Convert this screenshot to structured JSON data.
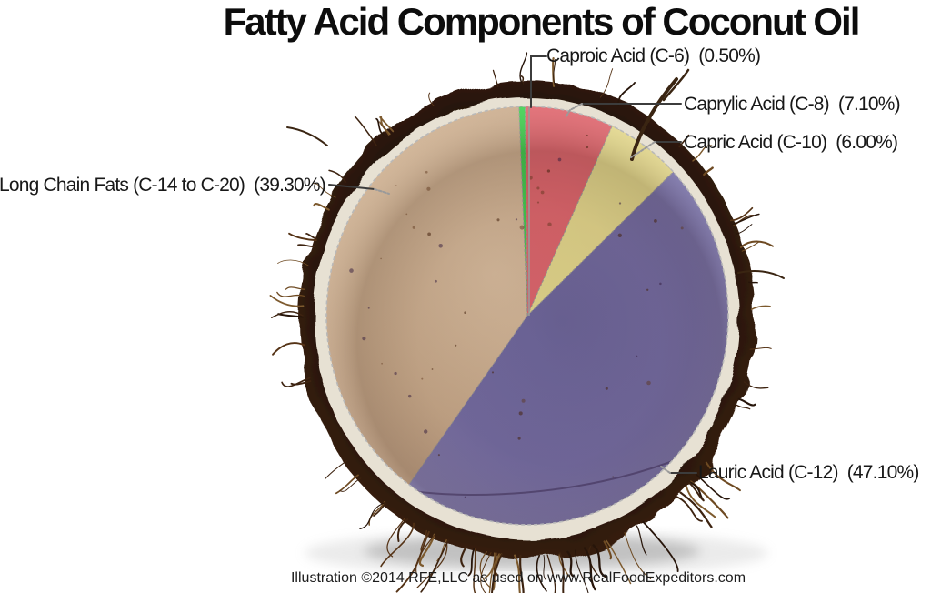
{
  "title": "Fatty Acid Components of Coconut Oil",
  "caption": "Illustration ©2014 RFE,LLC as used on www.RealFoodExpeditors.com",
  "chart_data": {
    "type": "pie",
    "title": "Fatty Acid Components of Coconut Oil",
    "start_angle_deg": -2.4,
    "direction": "clockwise",
    "legend_position": "callout-labels",
    "background": "photograph of halved coconut, pie drawn over the flesh",
    "slices": [
      {
        "name": "Caproic Acid",
        "formula": "C-6",
        "value_pct": 0.5,
        "label": "Caproic Acid (C-6)  (0.50%)",
        "color": "#3ed153"
      },
      {
        "name": "Caprylic Acid",
        "formula": "C-8",
        "value_pct": 7.1,
        "label": "Caprylic Acid (C-8)  (7.10%)",
        "color": "#e2606e"
      },
      {
        "name": "Capric Acid",
        "formula": "C-10",
        "value_pct": 6.0,
        "label": "Capric Acid (C-10)  (6.00%)",
        "color": "#e8e191"
      },
      {
        "name": "Lauric Acid",
        "formula": "C-12",
        "value_pct": 47.1,
        "label": "Lauric Acid (C-12)  (47.10%)",
        "color": "#6f6cb0"
      },
      {
        "name": "Long Chain Fats",
        "formula": "C-14 to C-20",
        "value_pct": 39.3,
        "label": "Long Chain Fats (C-14 to C-20)  (39.30%)",
        "color": "#c2a78b"
      }
    ],
    "accent_colors": {
      "husk_brown": "#241306",
      "inner_rim": "#e7e1d3",
      "flesh_tan": "#cbae90",
      "leader_line": "#4a4a4a",
      "selection_outline": "#b9b9b9"
    }
  }
}
